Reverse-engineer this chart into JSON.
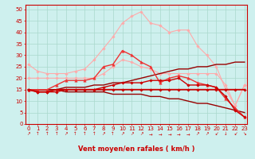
{
  "background_color": "#cef0ee",
  "grid_color": "#aad8cc",
  "xlabel": "Vent moyen/en rafales ( km/h )",
  "xlabel_color": "#cc0000",
  "xlabel_fontsize": 6,
  "tick_color": "#cc0000",
  "tick_fontsize": 5,
  "ylabel_ticks": [
    0,
    5,
    10,
    15,
    20,
    25,
    30,
    35,
    40,
    45,
    50
  ],
  "xmax": 23,
  "ymin": 0,
  "ymax": 52,
  "wind_arrows": [
    "↗",
    "↑",
    "↑",
    "↑",
    "↗",
    "↑",
    "↑",
    "↑",
    "↗",
    "↑",
    "↗",
    "↗",
    "↗",
    "→",
    "→",
    "→",
    "→",
    "→",
    "↗",
    "↗",
    "↙",
    "↓",
    "↙",
    "↘"
  ],
  "series": [
    {
      "name": "rafales_max",
      "x": [
        0,
        1,
        2,
        3,
        4,
        5,
        6,
        7,
        8,
        9,
        10,
        11,
        12,
        13,
        14,
        15,
        16,
        17,
        18,
        19,
        20,
        21,
        22,
        23
      ],
      "y": [
        26,
        23,
        22,
        22,
        22,
        23,
        24,
        28,
        33,
        38,
        44,
        47,
        49,
        44,
        43,
        40,
        41,
        41,
        34,
        30,
        25,
        15,
        8,
        17
      ],
      "color": "#ffaaaa",
      "marker": "D",
      "markersize": 1.8,
      "linewidth": 0.8,
      "zorder": 2
    },
    {
      "name": "rafales_moy",
      "x": [
        0,
        1,
        2,
        3,
        4,
        5,
        6,
        7,
        8,
        9,
        10,
        11,
        12,
        13,
        14,
        15,
        16,
        17,
        18,
        19,
        20,
        21,
        22,
        23
      ],
      "y": [
        20,
        20,
        20,
        20,
        20,
        20,
        20,
        20,
        22,
        25,
        28,
        27,
        25,
        24,
        22,
        22,
        22,
        22,
        22,
        22,
        22,
        17,
        8,
        17
      ],
      "color": "#ffaaaa",
      "marker": "D",
      "markersize": 1.8,
      "linewidth": 0.8,
      "zorder": 2
    },
    {
      "name": "vent_max",
      "x": [
        0,
        1,
        2,
        3,
        4,
        5,
        6,
        7,
        8,
        9,
        10,
        11,
        12,
        13,
        14,
        15,
        16,
        17,
        18,
        19,
        20,
        21,
        22,
        23
      ],
      "y": [
        15,
        15,
        15,
        17,
        19,
        19,
        19,
        20,
        25,
        26,
        32,
        30,
        27,
        25,
        18,
        20,
        21,
        20,
        18,
        17,
        16,
        11,
        7,
        3
      ],
      "color": "#ee3333",
      "marker": "^",
      "markersize": 2.5,
      "linewidth": 1.0,
      "zorder": 3
    },
    {
      "name": "vent_moy_flat",
      "x": [
        0,
        1,
        2,
        3,
        4,
        5,
        6,
        7,
        8,
        9,
        10,
        11,
        12,
        13,
        14,
        15,
        16,
        17,
        18,
        19,
        20,
        21,
        22,
        23
      ],
      "y": [
        15,
        14,
        14,
        15,
        15,
        15,
        15,
        15,
        15,
        15,
        15,
        15,
        15,
        15,
        15,
        15,
        15,
        15,
        15,
        15,
        15,
        15,
        15,
        15
      ],
      "color": "#cc0000",
      "marker": "D",
      "markersize": 1.8,
      "linewidth": 1.3,
      "zorder": 4
    },
    {
      "name": "vent_moy2",
      "x": [
        0,
        1,
        2,
        3,
        4,
        5,
        6,
        7,
        8,
        9,
        10,
        11,
        12,
        13,
        14,
        15,
        16,
        17,
        18,
        19,
        20,
        21,
        22,
        23
      ],
      "y": [
        15,
        14,
        14,
        14,
        15,
        15,
        15,
        15,
        16,
        17,
        18,
        18,
        18,
        19,
        19,
        19,
        20,
        17,
        17,
        17,
        16,
        12,
        6,
        3
      ],
      "color": "#cc0000",
      "marker": "D",
      "markersize": 1.8,
      "linewidth": 1.0,
      "zorder": 3
    },
    {
      "name": "decline",
      "x": [
        0,
        1,
        2,
        3,
        4,
        5,
        6,
        7,
        8,
        9,
        10,
        11,
        12,
        13,
        14,
        15,
        16,
        17,
        18,
        19,
        20,
        21,
        22,
        23
      ],
      "y": [
        15,
        15,
        15,
        15,
        14,
        14,
        14,
        14,
        14,
        13,
        13,
        13,
        13,
        12,
        12,
        11,
        11,
        10,
        9,
        9,
        8,
        7,
        6,
        5
      ],
      "color": "#990000",
      "marker": null,
      "markersize": 0,
      "linewidth": 1.0,
      "zorder": 2
    },
    {
      "name": "incline",
      "x": [
        0,
        1,
        2,
        3,
        4,
        5,
        6,
        7,
        8,
        9,
        10,
        11,
        12,
        13,
        14,
        15,
        16,
        17,
        18,
        19,
        20,
        21,
        22,
        23
      ],
      "y": [
        15,
        15,
        15,
        15,
        16,
        16,
        16,
        17,
        17,
        18,
        18,
        19,
        20,
        21,
        22,
        23,
        24,
        24,
        25,
        25,
        26,
        26,
        27,
        27
      ],
      "color": "#990000",
      "marker": null,
      "markersize": 0,
      "linewidth": 1.0,
      "zorder": 2
    }
  ]
}
